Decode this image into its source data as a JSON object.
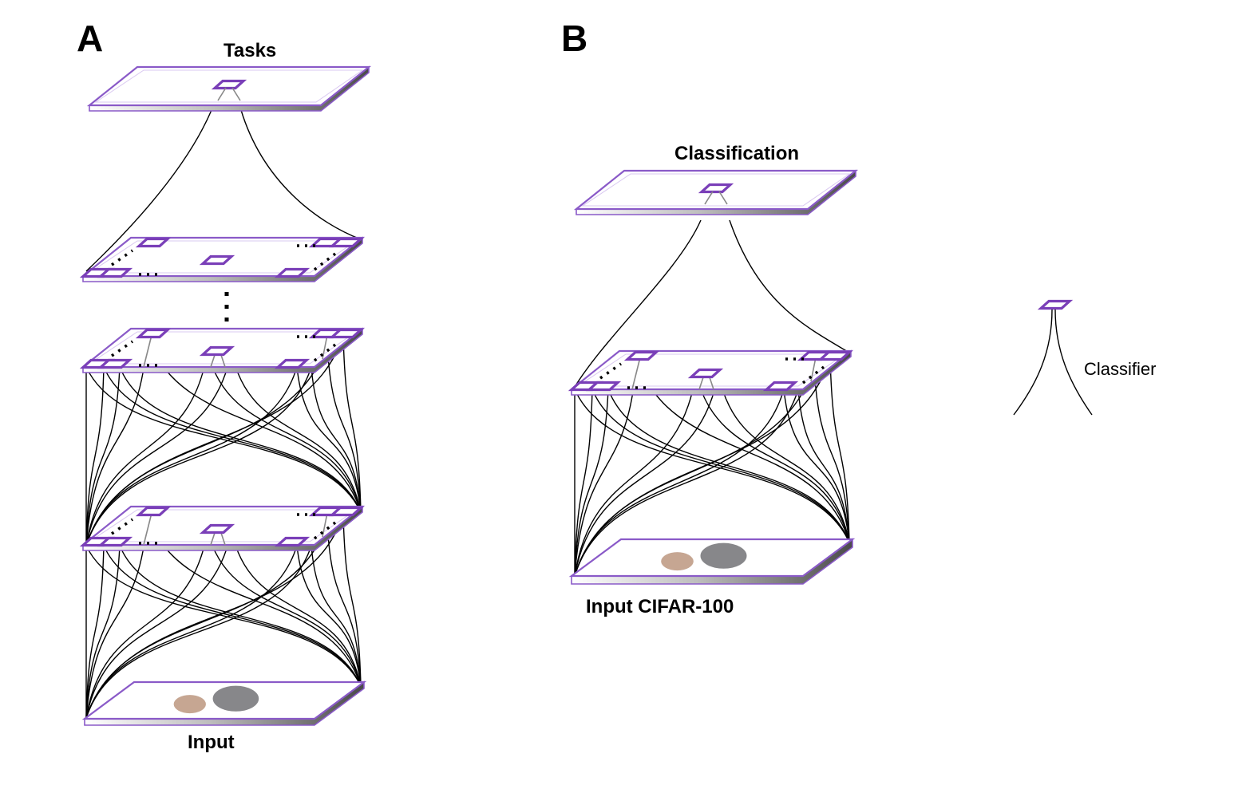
{
  "panels": {
    "a": {
      "letter": "A",
      "top_label": "Tasks",
      "bottom_label": "Input"
    },
    "b": {
      "letter": "B",
      "top_label": "Classification",
      "bottom_label": "Input CIFAR-100"
    }
  },
  "legend": {
    "label": "Classifier",
    "icon": "classifier-icon"
  },
  "colors": {
    "layer_edge": "#8a5ac8",
    "node": "#7a3fb8",
    "connection": "#000000"
  }
}
